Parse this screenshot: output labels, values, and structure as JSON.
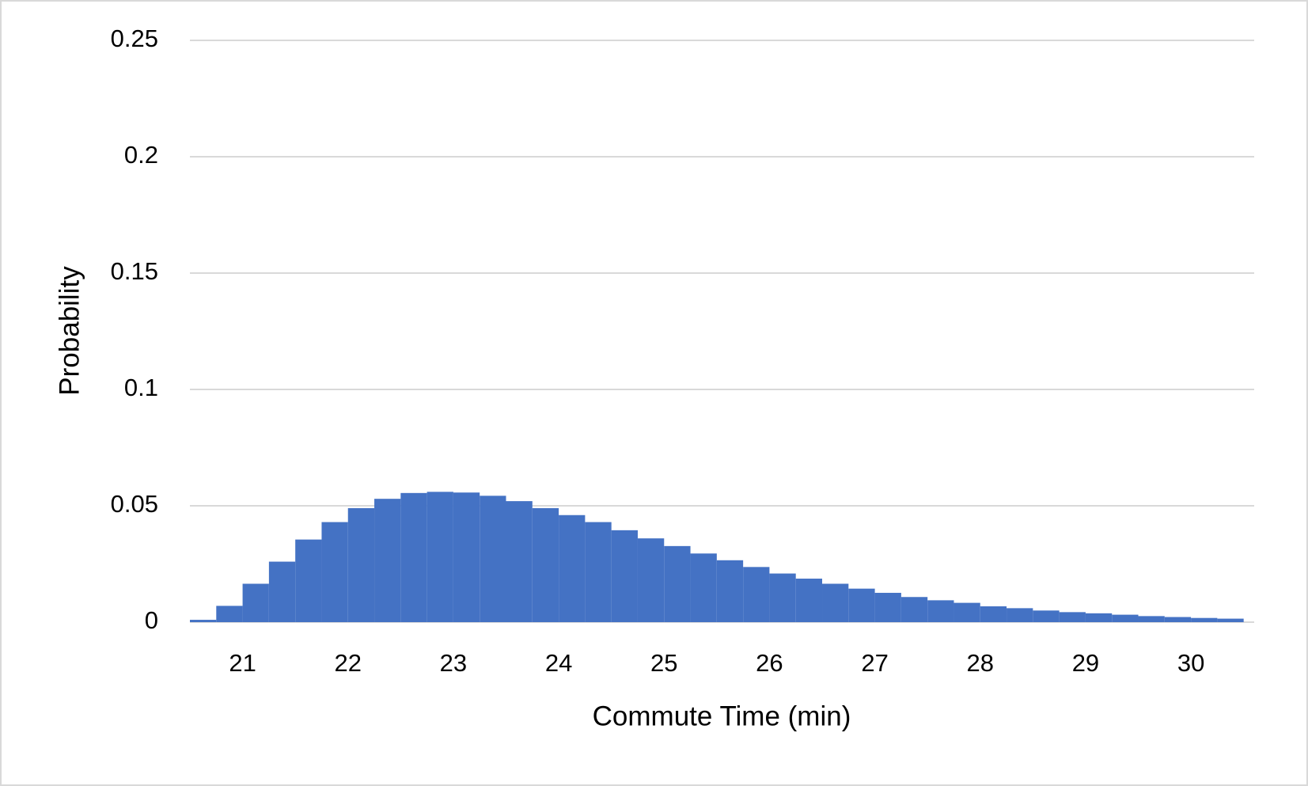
{
  "chart_data": {
    "type": "histogram",
    "x_label": "Commute Time (min)",
    "y_label": "Probability",
    "bins": [
      20.5,
      20.75,
      21,
      21.25,
      21.5,
      21.75,
      22,
      22.25,
      22.5,
      22.75,
      23,
      23.25,
      23.5,
      23.75,
      24,
      24.25,
      24.5,
      24.75,
      25,
      25.25,
      25.5,
      25.75,
      26,
      26.25,
      26.5,
      26.75,
      27,
      27.25,
      27.5,
      27.75,
      28,
      28.25,
      28.5,
      28.75,
      29,
      29.25,
      29.5,
      29.75,
      30,
      30.25,
      30.5
    ],
    "values": [
      0.001,
      0.007,
      0.0165,
      0.026,
      0.0355,
      0.043,
      0.049,
      0.053,
      0.0555,
      0.056,
      0.0557,
      0.0543,
      0.052,
      0.049,
      0.046,
      0.043,
      0.0395,
      0.036,
      0.0327,
      0.0295,
      0.0266,
      0.0237,
      0.0209,
      0.0187,
      0.0165,
      0.0144,
      0.0126,
      0.0108,
      0.0094,
      0.0083,
      0.0068,
      0.006,
      0.005,
      0.0043,
      0.0038,
      0.0032,
      0.0026,
      0.0022,
      0.0018,
      0.0015
    ],
    "color": "#4472c4",
    "xlim": [
      20.5,
      30.6
    ],
    "xticks": [
      21,
      22,
      23,
      24,
      25,
      26,
      27,
      28,
      29,
      30
    ],
    "ylim": [
      0,
      0.25
    ],
    "yticks": [
      0,
      0.05,
      0.1,
      0.15,
      0.2,
      0.25
    ],
    "grid": true
  }
}
